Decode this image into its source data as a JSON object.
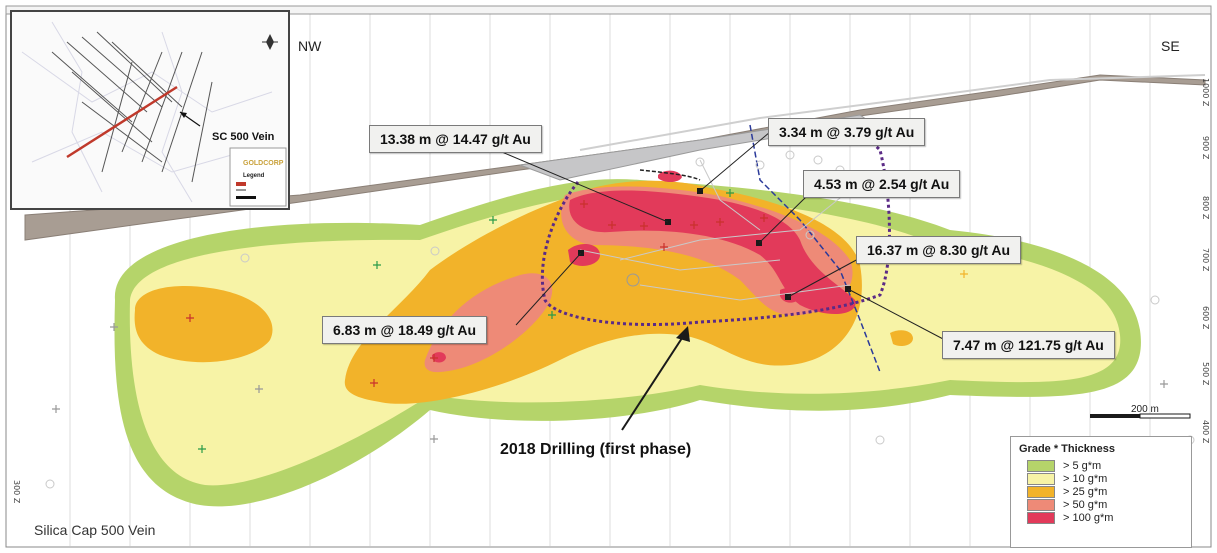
{
  "section_title": "Silica Cap 500 Vein",
  "direction_left": "NW",
  "direction_right": "SE",
  "inset": {
    "vein_label": "SC 500 Vein",
    "brand": "GOLDCORP",
    "legend_title": "Legend"
  },
  "callouts": [
    {
      "text": "13.38 m @ 14.47 g/t Au"
    },
    {
      "text": "3.34 m @ 3.79 g/t Au"
    },
    {
      "text": "4.53 m @ 2.54 g/t Au"
    },
    {
      "text": "16.37 m @ 8.30 g/t Au"
    },
    {
      "text": "6.83 m @ 18.49 g/t Au"
    },
    {
      "text": "7.47 m @ 121.75 g/t Au"
    }
  ],
  "drilling_label": "2018 Drilling (first phase)",
  "scale_bar": "200 m",
  "legend": {
    "title": "Grade * Thickness",
    "items": [
      {
        "label": "> 5 g*m",
        "color": "#b5d46a"
      },
      {
        "label": "> 10 g*m",
        "color": "#f7f3a6"
      },
      {
        "label": "> 25 g*m",
        "color": "#f2b32a"
      },
      {
        "label": "> 50 g*m",
        "color": "#ee8a77"
      },
      {
        "label": "> 100 g*m",
        "color": "#e23a5a"
      }
    ]
  },
  "elevation_labels": [
    "1000 Z",
    "900 Z",
    "800 Z",
    "700 Z",
    "600 Z",
    "500 Z",
    "400 Z",
    "300 Z"
  ]
}
